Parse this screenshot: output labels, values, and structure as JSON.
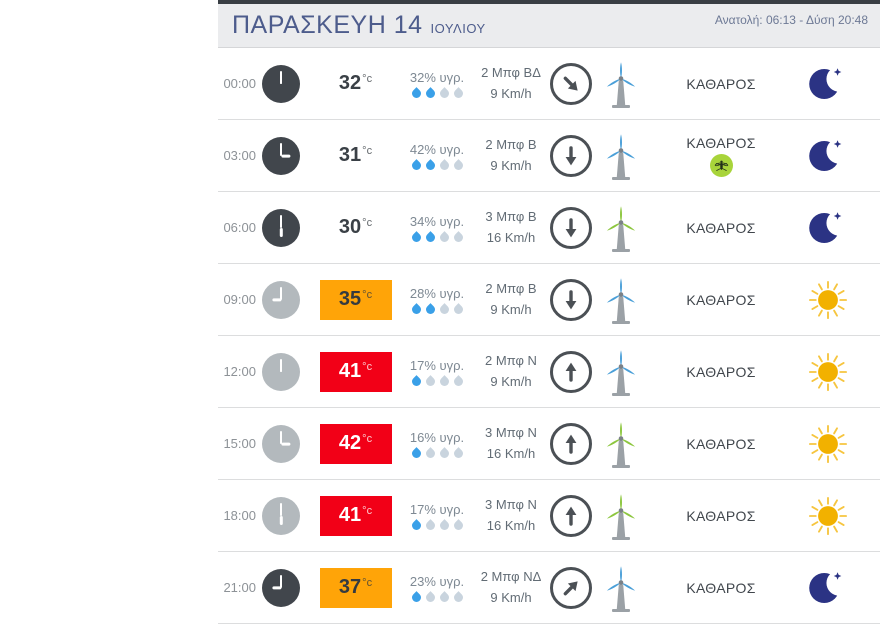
{
  "header": {
    "title": "ΠΑΡΑΣΚΕΥΗ 14",
    "subtitle": "ΙΟΥΛΙΟΥ",
    "sun_info": "Ανατολή: 06:13 - Δύση 20:48"
  },
  "units": {
    "temp": "°c"
  },
  "colors": {
    "temp_orange": "#ffa408",
    "temp_red": "#f20017",
    "drop_blue": "#3aa0e8",
    "turbine_blue": "#4a9fd8",
    "turbine_green": "#8cc63e",
    "moon_navy": "#2b3384",
    "sun_yellow": "#f2b100",
    "mosquito_green": "#a8d43a"
  },
  "rows": [
    {
      "time": "00:00",
      "clock_variant": "dark",
      "hour_angle": "0",
      "temp": "32",
      "temp_style": "plain",
      "humidity": "32% υγρ.",
      "drops": [
        "1",
        "1",
        "0",
        "0"
      ],
      "wind_bft": "2 Μπφ ΒΔ",
      "wind_speed": "9 Km/h",
      "arrow_rot": "135",
      "turbine_color": "blue",
      "sky": "ΚΑΘΑΡΟΣ",
      "mosquito": "no",
      "daynight": "moon"
    },
    {
      "time": "03:00",
      "clock_variant": "dark",
      "hour_angle": "90",
      "temp": "31",
      "temp_style": "plain",
      "humidity": "42% υγρ.",
      "drops": [
        "1",
        "1",
        "0",
        "0"
      ],
      "wind_bft": "2 Μπφ Β",
      "wind_speed": "9 Km/h",
      "arrow_rot": "180",
      "turbine_color": "blue",
      "sky": "ΚΑΘΑΡΟΣ",
      "mosquito": "yes",
      "daynight": "moon"
    },
    {
      "time": "06:00",
      "clock_variant": "dark",
      "hour_angle": "180",
      "temp": "30",
      "temp_style": "plain",
      "humidity": "34% υγρ.",
      "drops": [
        "1",
        "1",
        "0",
        "0"
      ],
      "wind_bft": "3 Μπφ Β",
      "wind_speed": "16 Km/h",
      "arrow_rot": "180",
      "turbine_color": "green",
      "sky": "ΚΑΘΑΡΟΣ",
      "mosquito": "no",
      "daynight": "moon"
    },
    {
      "time": "09:00",
      "clock_variant": "gray",
      "hour_angle": "270",
      "temp": "35",
      "temp_style": "orange",
      "humidity": "28% υγρ.",
      "drops": [
        "1",
        "1",
        "0",
        "0"
      ],
      "wind_bft": "2 Μπφ Β",
      "wind_speed": "9 Km/h",
      "arrow_rot": "180",
      "turbine_color": "blue",
      "sky": "ΚΑΘΑΡΟΣ",
      "mosquito": "no",
      "daynight": "sun"
    },
    {
      "time": "12:00",
      "clock_variant": "gray",
      "hour_angle": "0",
      "temp": "41",
      "temp_style": "red",
      "humidity": "17% υγρ.",
      "drops": [
        "1",
        "0",
        "0",
        "0"
      ],
      "wind_bft": "2 Μπφ Ν",
      "wind_speed": "9 Km/h",
      "arrow_rot": "0",
      "turbine_color": "blue",
      "sky": "ΚΑΘΑΡΟΣ",
      "mosquito": "no",
      "daynight": "sun"
    },
    {
      "time": "15:00",
      "clock_variant": "gray",
      "hour_angle": "90",
      "temp": "42",
      "temp_style": "red",
      "humidity": "16% υγρ.",
      "drops": [
        "1",
        "0",
        "0",
        "0"
      ],
      "wind_bft": "3 Μπφ Ν",
      "wind_speed": "16 Km/h",
      "arrow_rot": "0",
      "turbine_color": "green",
      "sky": "ΚΑΘΑΡΟΣ",
      "mosquito": "no",
      "daynight": "sun"
    },
    {
      "time": "18:00",
      "clock_variant": "gray",
      "hour_angle": "180",
      "temp": "41",
      "temp_style": "red",
      "humidity": "17% υγρ.",
      "drops": [
        "1",
        "0",
        "0",
        "0"
      ],
      "wind_bft": "3 Μπφ Ν",
      "wind_speed": "16 Km/h",
      "arrow_rot": "0",
      "turbine_color": "green",
      "sky": "ΚΑΘΑΡΟΣ",
      "mosquito": "no",
      "daynight": "sun"
    },
    {
      "time": "21:00",
      "clock_variant": "dark",
      "hour_angle": "270",
      "temp": "37",
      "temp_style": "orange",
      "humidity": "23% υγρ.",
      "drops": [
        "1",
        "0",
        "0",
        "0"
      ],
      "wind_bft": "2 Μπφ ΝΔ",
      "wind_speed": "9 Km/h",
      "arrow_rot": "45",
      "turbine_color": "blue",
      "sky": "ΚΑΘΑΡΟΣ",
      "mosquito": "no",
      "daynight": "moon"
    }
  ]
}
